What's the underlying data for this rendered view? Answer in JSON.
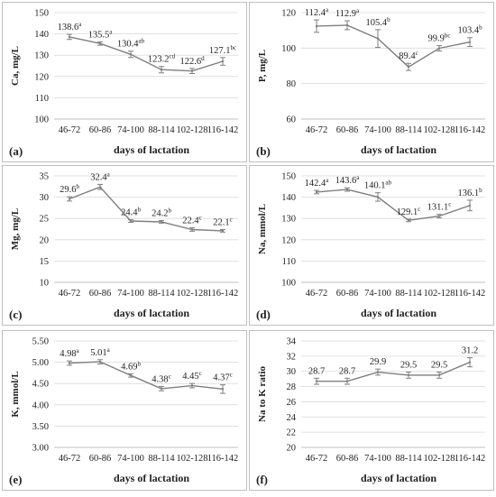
{
  "chart_data": [
    {
      "type": "line",
      "panel_label": "(a)",
      "categories": [
        "46-72",
        "60-86",
        "74-100",
        "88-114",
        "102-128",
        "116-142"
      ],
      "values": [
        138.6,
        135.5,
        130.4,
        123.2,
        122.6,
        127.1
      ],
      "errors": [
        1.2,
        0.8,
        1.5,
        1.5,
        1.2,
        1.8
      ],
      "data_labels": [
        "138.6a",
        "135.5a",
        "130.4ab",
        "123.2cd",
        "122.6d",
        "127.1bc"
      ],
      "ylabel": "Ca, mg/L",
      "xlabel": "days of lactation",
      "ylim": [
        100,
        150
      ],
      "yticks": [
        100,
        110,
        120,
        130,
        140,
        150
      ],
      "grid": true,
      "color": "#7f7f7f"
    },
    {
      "type": "line",
      "panel_label": "(b)",
      "categories": [
        "46-72",
        "60-86",
        "74-100",
        "88-114",
        "102-128",
        "116-142"
      ],
      "values": [
        112.4,
        112.9,
        105.4,
        89.4,
        99.9,
        103.4
      ],
      "errors": [
        3.5,
        2.5,
        5.0,
        2.0,
        1.5,
        2.5
      ],
      "data_labels": [
        "112.4a",
        "112.9a",
        "105.4b",
        "89.4c",
        "99.9bc",
        "103.4b"
      ],
      "ylabel": "P, mg/L",
      "xlabel": "days of lactation",
      "ylim": [
        60,
        120
      ],
      "yticks": [
        60,
        80,
        100,
        120
      ],
      "grid": true,
      "color": "#7f7f7f"
    },
    {
      "type": "line",
      "panel_label": "(c)",
      "categories": [
        "46-72",
        "60-86",
        "74-100",
        "88-114",
        "102-128",
        "116-142"
      ],
      "values": [
        29.6,
        32.4,
        24.4,
        24.2,
        22.4,
        22.1
      ],
      "errors": [
        0.5,
        0.6,
        0.3,
        0.3,
        0.4,
        0.3
      ],
      "data_labels": [
        "29.6b",
        "32.4a",
        "24.4b",
        "24.2b",
        "22.4c",
        "22.1c"
      ],
      "ylabel": "Mg, mg/L",
      "xlabel": "days of lactation",
      "ylim": [
        10,
        35
      ],
      "yticks": [
        10,
        15,
        20,
        25,
        30,
        35
      ],
      "grid": true,
      "color": "#7f7f7f"
    },
    {
      "type": "line",
      "panel_label": "(d)",
      "categories": [
        "46-72",
        "60-86",
        "74-100",
        "88-114",
        "102-128",
        "116-142"
      ],
      "values": [
        142.4,
        143.6,
        140.1,
        129.1,
        131.1,
        136.1
      ],
      "errors": [
        0.8,
        0.8,
        2.0,
        0.6,
        0.8,
        2.5
      ],
      "data_labels": [
        "142.4a",
        "143.6a",
        "140.1ab",
        "129.1c",
        "131.1c",
        "136.1b"
      ],
      "ylabel": "Na, mmol/L",
      "xlabel": "days of lactation",
      "ylim": [
        100,
        150
      ],
      "yticks": [
        100,
        110,
        120,
        130,
        140,
        150
      ],
      "grid": true,
      "color": "#7f7f7f"
    },
    {
      "type": "line",
      "panel_label": "(e)",
      "categories": [
        "46-72",
        "60-86",
        "74-100",
        "88-114",
        "102-128",
        "116-142"
      ],
      "values": [
        4.98,
        5.01,
        4.69,
        4.38,
        4.45,
        4.37
      ],
      "errors": [
        0.05,
        0.05,
        0.04,
        0.05,
        0.05,
        0.1
      ],
      "data_labels": [
        "4.98a",
        "5.01a",
        "4.69b",
        "4.38c",
        "4.45c",
        "4.37c"
      ],
      "ylabel": "K, mmol/L",
      "xlabel": "days of lactation",
      "ylim": [
        3.0,
        5.5
      ],
      "yticks": [
        "3.00",
        "3.50",
        "4.00",
        "4.50",
        "5.00",
        "5.50"
      ],
      "grid": true,
      "color": "#7f7f7f"
    },
    {
      "type": "line",
      "panel_label": "(f)",
      "categories": [
        "46-72",
        "60-86",
        "74-100",
        "88-114",
        "102-128",
        "116-142"
      ],
      "values": [
        28.7,
        28.7,
        29.9,
        29.5,
        29.5,
        31.2
      ],
      "errors": [
        0.4,
        0.4,
        0.4,
        0.4,
        0.4,
        0.6
      ],
      "data_labels": [
        "28.7",
        "28.7",
        "29.9",
        "29.5",
        "29.5",
        "31.2"
      ],
      "ylabel": "Na to K ratio",
      "xlabel": "days of lactation",
      "ylim": [
        20,
        34
      ],
      "yticks": [
        20,
        22,
        24,
        26,
        28,
        30,
        32,
        34
      ],
      "grid": true,
      "color": "#7f7f7f"
    }
  ]
}
